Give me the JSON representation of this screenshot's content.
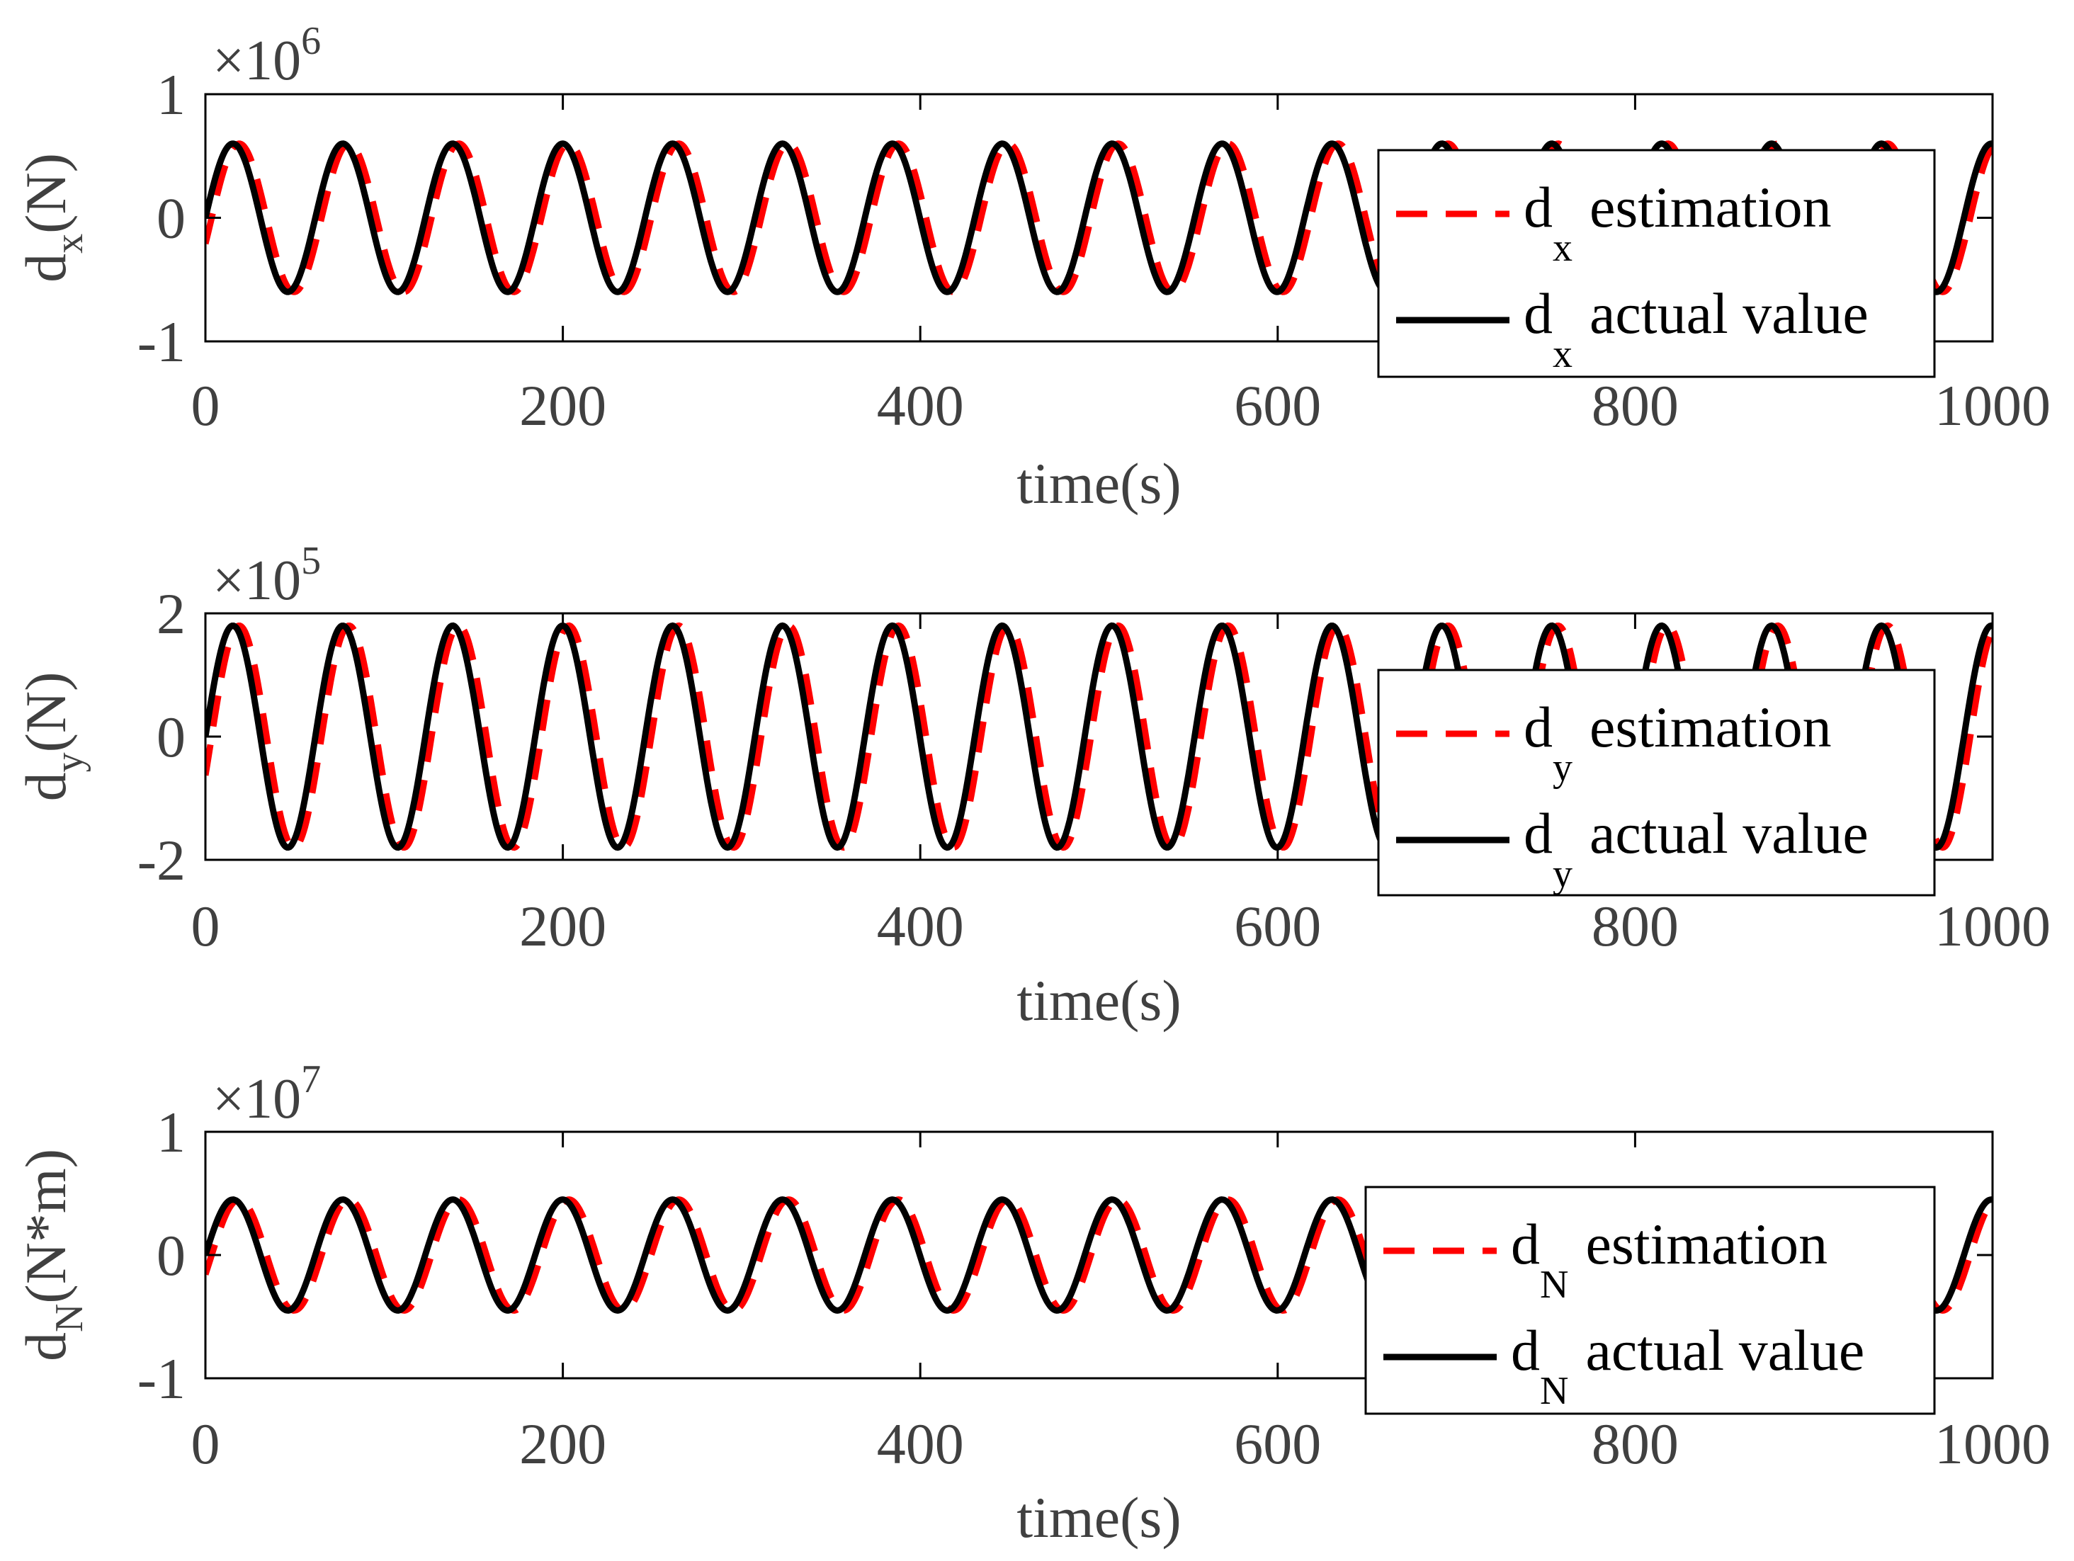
{
  "chart_data": [
    {
      "type": "line",
      "ylabel": {
        "main": "d",
        "sub": "x",
        "unit": "(N)"
      },
      "xlabel": "time(s)",
      "exponent": {
        "base": "×10",
        "power": "6"
      },
      "xlim": [
        0,
        1000
      ],
      "ylim": [
        -1,
        1
      ],
      "xticks": [
        "0",
        "200",
        "400",
        "600",
        "800",
        "1000"
      ],
      "yticks": [
        "-1",
        "0",
        "1"
      ],
      "period": 61.5,
      "series": [
        {
          "name": "estimation",
          "color": "#ff0000",
          "dash": "dashed",
          "amplitude": 0.6,
          "lag": 3.5
        },
        {
          "name": "actual value",
          "color": "#000000",
          "dash": "solid",
          "amplitude": 0.6,
          "lag": 0
        }
      ],
      "legend": {
        "position": "right",
        "sub": "x",
        "labels": [
          "estimation",
          "actual value"
        ]
      }
    },
    {
      "type": "line",
      "ylabel": {
        "main": "d",
        "sub": "y",
        "unit": "(N)"
      },
      "xlabel": "time(s)",
      "exponent": {
        "base": "×10",
        "power": "5"
      },
      "xlim": [
        0,
        1000
      ],
      "ylim": [
        -2,
        2
      ],
      "xticks": [
        "0",
        "200",
        "400",
        "600",
        "800",
        "1000"
      ],
      "yticks": [
        "-2",
        "0",
        "2"
      ],
      "period": 61.5,
      "series": [
        {
          "name": "estimation",
          "color": "#ff0000",
          "dash": "dashed",
          "amplitude": 1.8,
          "lag": 3.5
        },
        {
          "name": "actual value",
          "color": "#000000",
          "dash": "solid",
          "amplitude": 1.8,
          "lag": 0
        }
      ],
      "legend": {
        "position": "right",
        "sub": "y",
        "labels": [
          "estimation",
          "actual value"
        ]
      }
    },
    {
      "type": "line",
      "ylabel": {
        "main": "d",
        "sub": "N",
        "unit": "(N*m)"
      },
      "xlabel": "time(s)",
      "exponent": {
        "base": "×10",
        "power": "7"
      },
      "xlim": [
        0,
        1000
      ],
      "ylim": [
        -1,
        1
      ],
      "xticks": [
        "0",
        "200",
        "400",
        "600",
        "800",
        "1000"
      ],
      "yticks": [
        "-1",
        "0",
        "1"
      ],
      "period": 61.5,
      "series": [
        {
          "name": "estimation",
          "color": "#ff0000",
          "dash": "dashed",
          "amplitude": 0.45,
          "lag": 3.5
        },
        {
          "name": "actual value",
          "color": "#000000",
          "dash": "solid",
          "amplitude": 0.45,
          "lag": 0
        }
      ],
      "legend": {
        "position": "right",
        "sub": "N",
        "labels": [
          "estimation",
          "actual value"
        ]
      }
    }
  ]
}
